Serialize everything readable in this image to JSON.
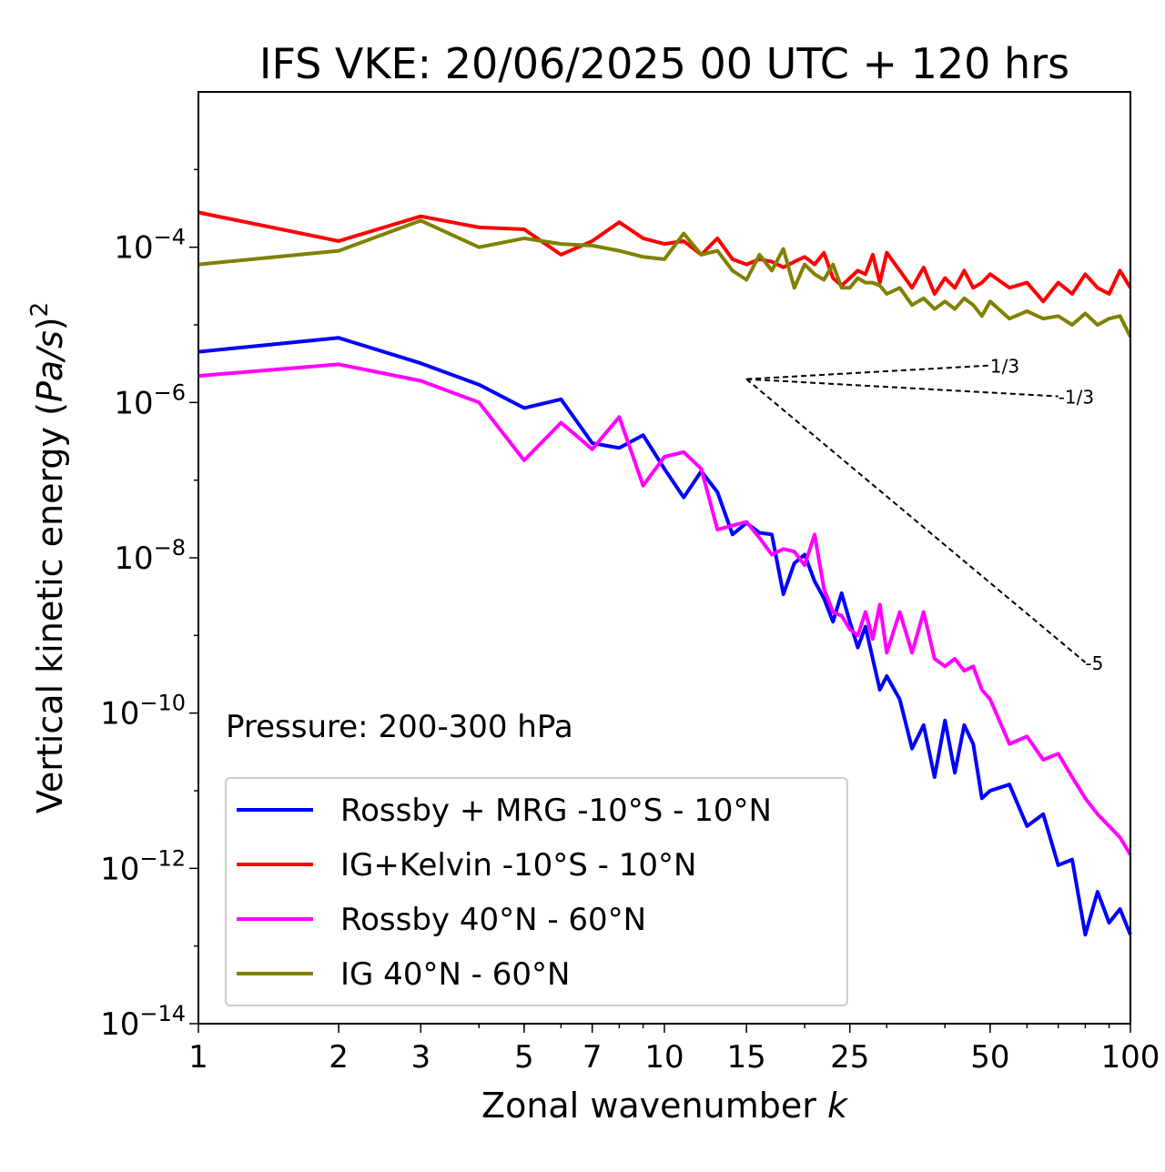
{
  "chart_data": {
    "type": "line",
    "title": "IFS VKE: 20/06/2025 00 UTC + 120 hrs",
    "xlabel": "Zonal wavenumber k",
    "xlabel_main": "Zonal wavenumber ",
    "xlabel_italic": "k",
    "ylabel": "Vertical kinetic energy (Pa/s)^2",
    "ylabel_main": "Vertical kinetic energy (",
    "ylabel_italic": "Pa/s",
    "ylabel_close": ")",
    "ylabel_sup": "2",
    "annotation": "Pressure: 200-300 hPa",
    "xscale": "log",
    "yscale": "log",
    "xlim": [
      1,
      100
    ],
    "ylim": [
      1e-14,
      0.01
    ],
    "x_ticks": [
      1,
      2,
      3,
      5,
      7,
      10,
      15,
      25,
      50,
      100
    ],
    "x_tick_labels": [
      "1",
      "2",
      "3",
      "5",
      "7",
      "10",
      "15",
      "25",
      "50",
      "100"
    ],
    "y_ticks": [
      -14,
      -12,
      -10,
      -8,
      -6,
      -4
    ],
    "y_tick_base": "10",
    "y_tick_exponents": [
      "−14",
      "−12",
      "−10",
      "−8",
      "−6",
      "−4"
    ],
    "legend_position": "lower-left",
    "series": [
      {
        "name": "Rossby + MRG -10°S - 10°N",
        "color": "#0000ff",
        "x": [
          1,
          2,
          3,
          4,
          5,
          6,
          7,
          8,
          9,
          10,
          11,
          12,
          13,
          14,
          15,
          16,
          17,
          18,
          19,
          20,
          21,
          22,
          23,
          24,
          25,
          26,
          27,
          28,
          29,
          30,
          32,
          34,
          36,
          38,
          40,
          42,
          44,
          46,
          48,
          50,
          55,
          60,
          65,
          70,
          75,
          80,
          85,
          90,
          95,
          100
        ],
        "y": [
          4.5e-06,
          6.8e-06,
          3.2e-06,
          1.7e-06,
          8.5e-07,
          1.1e-06,
          3e-07,
          2.6e-07,
          3.8e-07,
          1.4e-07,
          6e-08,
          1.3e-07,
          7e-08,
          2e-08,
          2.8e-08,
          2.1e-08,
          2e-08,
          3.4e-09,
          8.5e-09,
          1.1e-08,
          5e-09,
          3e-09,
          1.5e-09,
          3.5e-09,
          1.5e-09,
          7e-10,
          1.3e-09,
          5e-10,
          2e-10,
          3e-10,
          1.5e-10,
          3.5e-11,
          7e-11,
          1.5e-11,
          8e-11,
          1.7e-11,
          7e-11,
          4e-11,
          8e-12,
          1e-11,
          1.2e-11,
          3.5e-12,
          5e-12,
          1.1e-12,
          1.3e-12,
          1.4e-13,
          5e-13,
          2e-13,
          3e-13,
          1.4e-13
        ]
      },
      {
        "name": "IG+Kelvin -10°S - 10°N",
        "color": "#ff0000",
        "x": [
          1,
          2,
          3,
          4,
          5,
          6,
          7,
          8,
          9,
          10,
          11,
          12,
          13,
          14,
          15,
          16,
          17,
          18,
          19,
          20,
          21,
          22,
          23,
          24,
          25,
          26,
          27,
          28,
          29,
          30,
          32,
          34,
          36,
          38,
          40,
          42,
          44,
          46,
          48,
          50,
          55,
          60,
          65,
          70,
          75,
          80,
          85,
          90,
          95,
          100
        ],
        "y": [
          0.00028,
          0.00012,
          0.00025,
          0.00018,
          0.00017,
          8e-05,
          0.00012,
          0.00021,
          0.00013,
          0.00011,
          0.00012,
          8e-05,
          0.00013,
          7e-05,
          6e-05,
          7e-05,
          6.5e-05,
          5.5e-05,
          6.5e-05,
          7.5e-05,
          6e-05,
          8.5e-05,
          4e-05,
          3.2e-05,
          4e-05,
          5e-05,
          4.5e-05,
          8e-05,
          3.5e-05,
          8.5e-05,
          5e-05,
          3e-05,
          5.5e-05,
          2.5e-05,
          4e-05,
          3e-05,
          5e-05,
          3e-05,
          3.5e-05,
          4.5e-05,
          3e-05,
          3.5e-05,
          2e-05,
          3.5e-05,
          2.5e-05,
          4.5e-05,
          3e-05,
          2.5e-05,
          5e-05,
          3e-05
        ]
      },
      {
        "name": "Rossby 40°N - 60°N",
        "color": "#ff00ff",
        "x": [
          1,
          2,
          3,
          4,
          5,
          6,
          7,
          8,
          9,
          10,
          11,
          12,
          13,
          14,
          15,
          16,
          17,
          18,
          19,
          20,
          21,
          22,
          23,
          24,
          25,
          26,
          27,
          28,
          29,
          30,
          32,
          34,
          36,
          38,
          40,
          42,
          44,
          46,
          48,
          50,
          55,
          60,
          65,
          70,
          75,
          80,
          85,
          90,
          95,
          100
        ],
        "y": [
          2.2e-06,
          3.1e-06,
          1.9e-06,
          1e-06,
          1.8e-07,
          5.5e-07,
          2.5e-07,
          6.5e-07,
          8.5e-08,
          2e-07,
          2.3e-07,
          1.4e-07,
          2.3e-08,
          2.6e-08,
          2.9e-08,
          1.8e-08,
          1.1e-08,
          1.3e-08,
          1.2e-08,
          8e-09,
          2e-08,
          4e-09,
          2e-09,
          1.8e-09,
          1.2e-09,
          1e-09,
          2e-09,
          9e-10,
          2.5e-09,
          6e-10,
          2e-09,
          6e-10,
          2e-09,
          5e-10,
          4e-10,
          5e-10,
          3.5e-10,
          4e-10,
          2e-10,
          1.5e-10,
          4e-11,
          5e-11,
          2.5e-11,
          3e-11,
          1.5e-11,
          8e-12,
          5e-12,
          3.5e-12,
          2.5e-12,
          1.5e-12
        ]
      },
      {
        "name": "IG 40°N - 60°N",
        "color": "#808000",
        "x": [
          1,
          2,
          3,
          4,
          5,
          6,
          7,
          8,
          9,
          10,
          11,
          12,
          13,
          14,
          15,
          16,
          17,
          18,
          19,
          20,
          21,
          22,
          23,
          24,
          25,
          26,
          27,
          28,
          29,
          30,
          32,
          34,
          36,
          38,
          40,
          42,
          44,
          46,
          48,
          50,
          55,
          60,
          65,
          70,
          75,
          80,
          85,
          90,
          95,
          100
        ],
        "y": [
          6e-05,
          9e-05,
          0.00022,
          0.0001,
          0.00013,
          0.00011,
          0.000105,
          9e-05,
          7.5e-05,
          7e-05,
          0.00015,
          8e-05,
          9e-05,
          5e-05,
          3.8e-05,
          8e-05,
          5e-05,
          9.5e-05,
          3e-05,
          6e-05,
          4.5e-05,
          3.8e-05,
          6e-05,
          3e-05,
          3e-05,
          4e-05,
          3.5e-05,
          3.5e-05,
          3.2e-05,
          2.5e-05,
          3e-05,
          1.8e-05,
          2.2e-05,
          1.6e-05,
          2e-05,
          1.6e-05,
          2.2e-05,
          1.8e-05,
          1.3e-05,
          2e-05,
          1.2e-05,
          1.5e-05,
          1.2e-05,
          1.3e-05,
          1e-05,
          1.4e-05,
          1e-05,
          1.2e-05,
          1.3e-05,
          7e-06
        ]
      }
    ],
    "reference_lines": [
      {
        "label": "1/3",
        "x": [
          15,
          50
        ],
        "y": [
          2e-06,
          3e-06
        ]
      },
      {
        "label": "-1/3",
        "x": [
          15,
          70
        ],
        "y": [
          2e-06,
          1.2e-06
        ]
      },
      {
        "label": "-5",
        "x": [
          15,
          80
        ],
        "y": [
          2e-06,
          4.5e-10
        ]
      }
    ]
  }
}
